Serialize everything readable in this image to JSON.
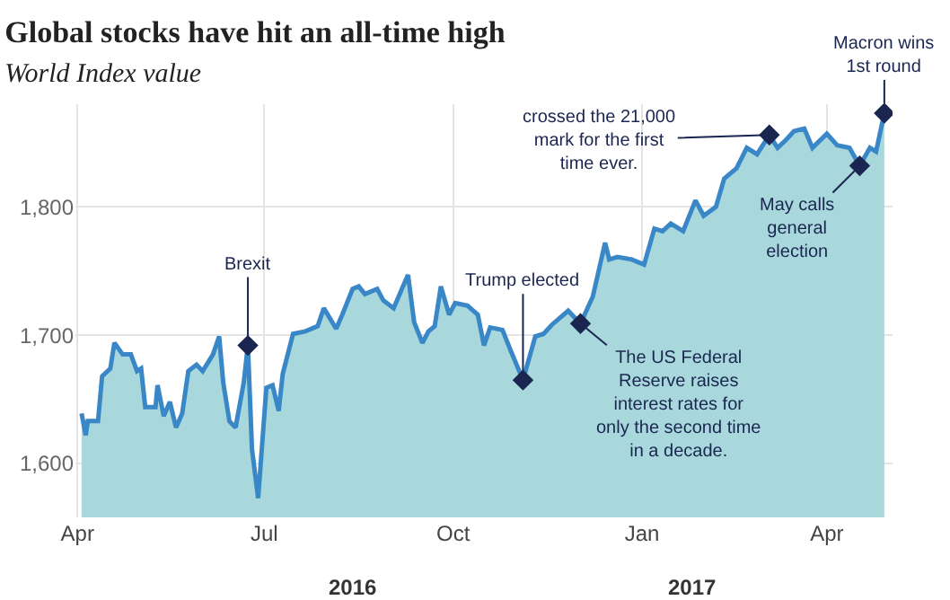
{
  "chart_data": {
    "type": "area",
    "title": "Global stocks have hit an all-time high",
    "subtitle": "World Index value",
    "x": [
      "2016-04-03",
      "2016-04-05",
      "2016-04-06",
      "2016-04-11",
      "2016-04-13",
      "2016-04-17",
      "2016-04-19",
      "2016-04-23",
      "2016-04-27",
      "2016-04-30",
      "2016-05-02",
      "2016-05-04",
      "2016-05-09",
      "2016-05-10",
      "2016-05-13",
      "2016-05-16",
      "2016-05-19",
      "2016-05-22",
      "2016-05-25",
      "2016-05-29",
      "2016-06-01",
      "2016-06-06",
      "2016-06-09",
      "2016-06-11",
      "2016-06-14",
      "2016-06-17",
      "2016-06-21",
      "2016-06-23",
      "2016-06-25",
      "2016-06-28",
      "2016-07-02",
      "2016-07-05",
      "2016-07-08",
      "2016-07-10",
      "2016-07-15",
      "2016-07-21",
      "2016-07-27",
      "2016-07-30",
      "2016-08-05",
      "2016-08-08",
      "2016-08-13",
      "2016-08-16",
      "2016-08-19",
      "2016-08-25",
      "2016-08-28",
      "2016-09-02",
      "2016-09-06",
      "2016-09-09",
      "2016-09-12",
      "2016-09-16",
      "2016-09-19",
      "2016-09-22",
      "2016-09-25",
      "2016-09-29",
      "2016-10-02",
      "2016-10-08",
      "2016-10-13",
      "2016-10-16",
      "2016-10-19",
      "2016-10-25",
      "2016-10-29",
      "2016-11-04",
      "2016-11-10",
      "2016-11-14",
      "2016-11-18",
      "2016-11-26",
      "2016-12-02",
      "2016-12-08",
      "2016-12-14",
      "2016-12-16",
      "2016-12-20",
      "2016-12-27",
      "2017-01-02",
      "2017-01-07",
      "2017-01-11",
      "2017-01-15",
      "2017-01-21",
      "2017-01-27",
      "2017-01-31",
      "2017-02-06",
      "2017-02-10",
      "2017-02-16",
      "2017-02-21",
      "2017-02-26",
      "2017-03-04",
      "2017-03-08",
      "2017-03-12",
      "2017-03-16",
      "2017-03-21",
      "2017-03-25",
      "2017-04-01",
      "2017-04-06",
      "2017-04-12",
      "2017-04-17",
      "2017-04-22",
      "2017-04-25",
      "2017-04-29"
    ],
    "series": [
      {
        "color": "#3a87c8",
        "values": [
          1639,
          1622,
          1633,
          1633,
          1668,
          1674,
          1694,
          1685,
          1685,
          1672,
          1674,
          1644,
          1644,
          1661,
          1637,
          1648,
          1628,
          1639,
          1672,
          1677,
          1672,
          1685,
          1699,
          1663,
          1633,
          1628,
          1663,
          1692,
          1611,
          1573,
          1659,
          1661,
          1641,
          1670,
          1701,
          1703,
          1707,
          1721,
          1705,
          1716,
          1736,
          1738,
          1732,
          1736,
          1727,
          1721,
          1736,
          1747,
          1710,
          1694,
          1703,
          1707,
          1738,
          1716,
          1725,
          1723,
          1716,
          1692,
          1706,
          1704,
          1688,
          1665,
          1699,
          1701,
          1708,
          1719,
          1709,
          1730,
          1772,
          1759,
          1761,
          1759,
          1755,
          1783,
          1781,
          1787,
          1781,
          1805,
          1793,
          1800,
          1822,
          1830,
          1846,
          1841,
          1856,
          1846,
          1852,
          1859,
          1861,
          1846,
          1857,
          1848,
          1846,
          1832,
          1846,
          1843,
          1873
        ]
      }
    ],
    "xlim": [
      "2016-03-31",
      "2017-05-03"
    ],
    "xticks": [
      {
        "value": "2016-04-01",
        "label": "Apr"
      },
      {
        "value": "2016-07-01",
        "label": "Jul"
      },
      {
        "value": "2016-10-01",
        "label": "Oct"
      },
      {
        "value": "2017-01-01",
        "label": "Jan"
      },
      {
        "value": "2017-04-01",
        "label": "Apr"
      }
    ],
    "ylim": [
      1558,
      1880
    ],
    "yticks": [
      {
        "value": 1600,
        "label": "1,600"
      },
      {
        "value": 1700,
        "label": "1,700"
      },
      {
        "value": 1800,
        "label": "1,800"
      }
    ],
    "grid": true,
    "annotations": [
      {
        "text": "Brexit",
        "x": "2016-06-23",
        "y": 1692
      },
      {
        "text": "Trump elected",
        "x": "2016-11-04",
        "y": 1665
      },
      {
        "text": "The US Federal Reserve raises interest rates for only the second time in a decade.",
        "x": "2016-12-02",
        "y": 1709
      },
      {
        "text": "crossed the 21,000 mark for the first time ever.",
        "x": "2017-03-04",
        "y": 1856
      },
      {
        "text": "May calls general election",
        "x": "2017-04-17",
        "y": 1832
      },
      {
        "text": "Macron wins 1st round",
        "x": "2017-04-29",
        "y": 1873
      },
      "2016",
      "2017"
    ]
  }
}
